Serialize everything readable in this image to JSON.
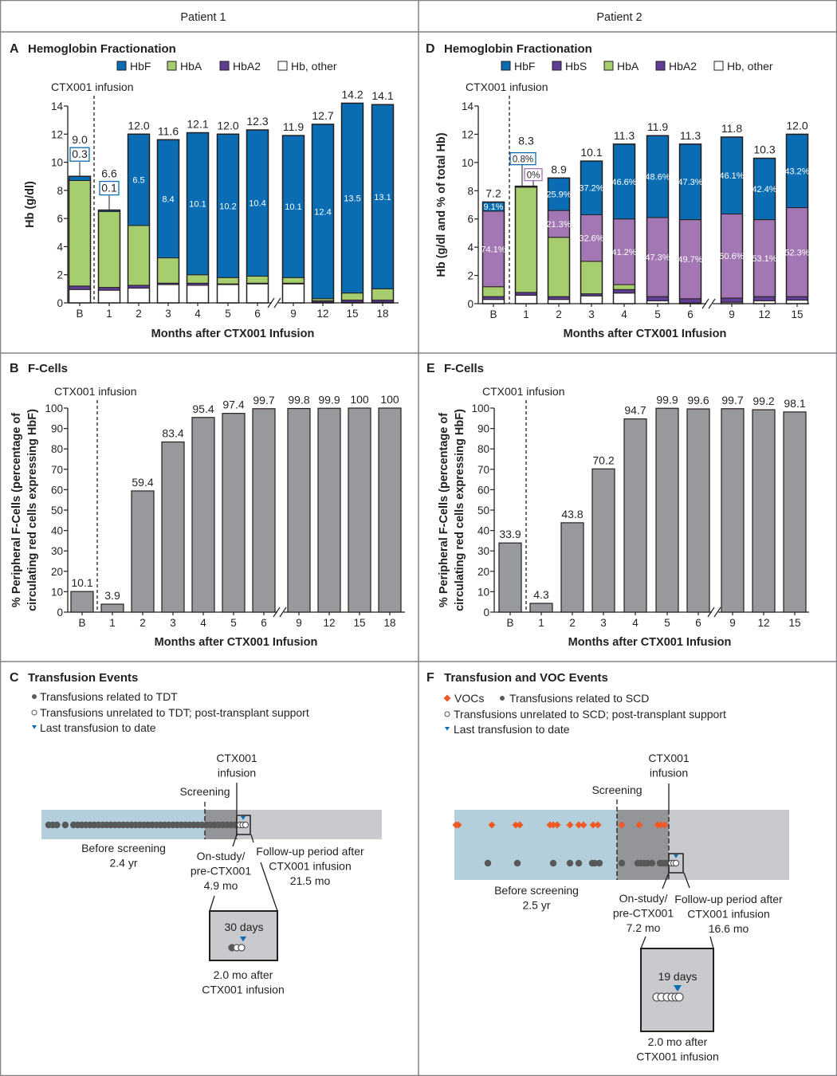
{
  "header": {
    "patient1": "Patient 1",
    "patient2": "Patient 2"
  },
  "colors": {
    "HbF": "#0a6db3",
    "HbA": "#a6cd6e",
    "HbA2": "#5f3e94",
    "HbS": "#a377b4",
    "Hb, other": "#ffffff",
    "fcells": "#97999c",
    "voc": "#f15a24",
    "last_transfusion": "#0a6db3",
    "before_screening": "#b3cfdc",
    "on_study": "#939598",
    "follow_up": "#c8cacd"
  },
  "chart_data": [
    {
      "panel": "A",
      "title": "Hemoglobin Fractionation",
      "type": "bar",
      "stacked": true,
      "infusion_label": "CTX001 infusion",
      "xlabel": "Months after CTX001 Infusion",
      "ylabel": "Hb (g/dl)",
      "ylim": [
        0,
        14
      ],
      "yticks": [
        0,
        2,
        4,
        6,
        8,
        10,
        12,
        14
      ],
      "legend": [
        "HbF",
        "HbA",
        "HbA2",
        "Hb, other"
      ],
      "categories": [
        "B",
        "1",
        "2",
        "3",
        "4",
        "5",
        "6",
        "9",
        "12",
        "15",
        "18"
      ],
      "series": [
        {
          "name": "Hb, other",
          "values": [
            0.95,
            0.9,
            1.05,
            1.3,
            1.25,
            1.3,
            1.35,
            1.35,
            0.05,
            0.05,
            0.05
          ]
        },
        {
          "name": "HbA2",
          "values": [
            0.25,
            0.2,
            0.2,
            0.1,
            0.15,
            0.05,
            0.05,
            0.05,
            0.1,
            0.15,
            0.15
          ]
        },
        {
          "name": "HbA",
          "values": [
            7.5,
            5.4,
            4.25,
            1.8,
            0.6,
            0.45,
            0.5,
            0.4,
            0.15,
            0.5,
            0.8
          ]
        },
        {
          "name": "HbF",
          "values": [
            0.3,
            0.1,
            6.5,
            8.4,
            10.1,
            10.2,
            10.4,
            10.1,
            12.4,
            13.5,
            13.1
          ]
        }
      ],
      "totals": [
        "9.0",
        "6.6",
        "12.0",
        "11.6",
        "12.1",
        "12.0",
        "12.3",
        "11.9",
        "12.7",
        "14.2",
        "14.1"
      ],
      "segment_labels": {
        "HbF": [
          "0.3",
          "0.1",
          "6.5",
          "8.4",
          "10.1",
          "10.2",
          "10.4",
          "10.1",
          "12.4",
          "13.5",
          "13.1"
        ]
      }
    },
    {
      "panel": "D",
      "title": "Hemoglobin Fractionation",
      "type": "bar",
      "stacked": true,
      "infusion_label": "CTX001 infusion",
      "xlabel": "Months after CTX001 Infusion",
      "ylabel": "Hb (g/dl and % of total Hb)",
      "ylim": [
        0,
        14
      ],
      "yticks": [
        0,
        2,
        4,
        6,
        8,
        10,
        12,
        14
      ],
      "legend": [
        "HbF",
        "HbS",
        "HbA",
        "HbA2",
        "Hb, other"
      ],
      "categories": [
        "B",
        "1",
        "2",
        "3",
        "4",
        "5",
        "6",
        "9",
        "12",
        "15"
      ],
      "series": [
        {
          "name": "Hb, other",
          "values": [
            0.3,
            0.6,
            0.3,
            0.55,
            0.75,
            0.2,
            0.05,
            0.1,
            0.2,
            0.25
          ]
        },
        {
          "name": "HbA2",
          "values": [
            0.2,
            0.2,
            0.2,
            0.15,
            0.25,
            0.3,
            0.3,
            0.3,
            0.3,
            0.25
          ]
        },
        {
          "name": "HbA",
          "values": [
            0.7,
            7.45,
            4.2,
            2.3,
            0.35,
            0,
            0,
            0,
            0,
            0
          ]
        },
        {
          "name": "HbS",
          "values": [
            5.35,
            0,
            1.9,
            3.3,
            4.65,
            5.6,
            5.6,
            5.95,
            5.45,
            6.3
          ]
        },
        {
          "name": "HbF",
          "values": [
            0.65,
            0.07,
            2.3,
            3.8,
            5.3,
            5.8,
            5.35,
            5.45,
            4.35,
            5.2
          ]
        }
      ],
      "totals": [
        "7.2",
        "8.3",
        "8.9",
        "10.1",
        "11.3",
        "11.9",
        "11.3",
        "11.8",
        "10.3",
        "12.0"
      ],
      "segment_labels": {
        "HbF": [
          "9.1%",
          "0.8%",
          "25.9%",
          "37.2%",
          "46.6%",
          "48.6%",
          "47.3%",
          "46.1%",
          "42.4%",
          "43.2%"
        ],
        "HbS": [
          "74.1%",
          "0%",
          "21.3%",
          "32.6%",
          "41.2%",
          "47.3%",
          "49.7%",
          "50.6%",
          "53.1%",
          "52.3%"
        ]
      }
    },
    {
      "panel": "B",
      "title": "F-Cells",
      "type": "bar",
      "infusion_label": "CTX001 infusion",
      "xlabel": "Months after CTX001 Infusion",
      "ylabel": [
        "% Peripheral F-Cells (percentage of",
        "circulating red cells expressing HbF)"
      ],
      "ylim": [
        0,
        100
      ],
      "yticks": [
        0,
        10,
        20,
        30,
        40,
        50,
        60,
        70,
        80,
        90,
        100
      ],
      "categories": [
        "B",
        "1",
        "2",
        "3",
        "4",
        "5",
        "6",
        "9",
        "12",
        "15",
        "18"
      ],
      "values": [
        10.1,
        3.9,
        59.4,
        83.4,
        95.4,
        97.4,
        99.7,
        99.8,
        99.9,
        100,
        100
      ],
      "value_labels": [
        "10.1",
        "3.9",
        "59.4",
        "83.4",
        "95.4",
        "97.4",
        "99.7",
        "99.8",
        "99.9",
        "100",
        "100"
      ]
    },
    {
      "panel": "E",
      "title": "F-Cells",
      "type": "bar",
      "infusion_label": "CTX001 infusion",
      "xlabel": "Months after CTX001 Infusion",
      "ylabel": [
        "% Peripheral F-Cells (percentage of",
        "circulating red cells expressing HbF)"
      ],
      "ylim": [
        0,
        100
      ],
      "yticks": [
        0,
        10,
        20,
        30,
        40,
        50,
        60,
        70,
        80,
        90,
        100
      ],
      "categories": [
        "B",
        "1",
        "2",
        "3",
        "4",
        "5",
        "6",
        "9",
        "12",
        "15"
      ],
      "values": [
        33.9,
        4.3,
        43.8,
        70.2,
        94.7,
        99.9,
        99.6,
        99.7,
        99.2,
        98.1
      ],
      "value_labels": [
        "33.9",
        "4.3",
        "43.8",
        "70.2",
        "94.7",
        "99.9",
        "99.6",
        "99.7",
        "99.2",
        "98.1"
      ]
    }
  ],
  "timelines": {
    "C": {
      "letter": "C",
      "title": "Transfusion Events",
      "legend": [
        "Transfusions related to TDT",
        "Transfusions unrelated to TDT; post-transplant support",
        "Last transfusion to date"
      ],
      "infusion": [
        "CTX001",
        "infusion"
      ],
      "screening": "Screening",
      "before": [
        "Before screening",
        "2.4 yr"
      ],
      "onstudy": [
        "On-study/",
        "pre-CTX001",
        "4.9 mo"
      ],
      "followup": [
        "Follow-up period after",
        "CTX001 infusion",
        "21.5 mo"
      ],
      "inset_label": "30 days",
      "inset_caption": [
        "2.0 mo after",
        "CTX001 infusion"
      ]
    },
    "F": {
      "letter": "F",
      "title": "Transfusion and VOC Events",
      "legend": [
        "VOCs",
        "Transfusions related to SCD",
        "Transfusions unrelated to SCD; post-transplant support",
        "Last transfusion to date"
      ],
      "infusion": [
        "CTX001",
        "infusion"
      ],
      "screening": "Screening",
      "before": [
        "Before screening",
        "2.5 yr"
      ],
      "onstudy": [
        "On-study/",
        "pre-CTX001",
        "7.2 mo"
      ],
      "followup": [
        "Follow-up period after",
        "CTX001 infusion",
        "16.6 mo"
      ],
      "inset_label": "19 days",
      "inset_caption": [
        "2.0 mo after",
        "CTX001 infusion"
      ]
    }
  }
}
